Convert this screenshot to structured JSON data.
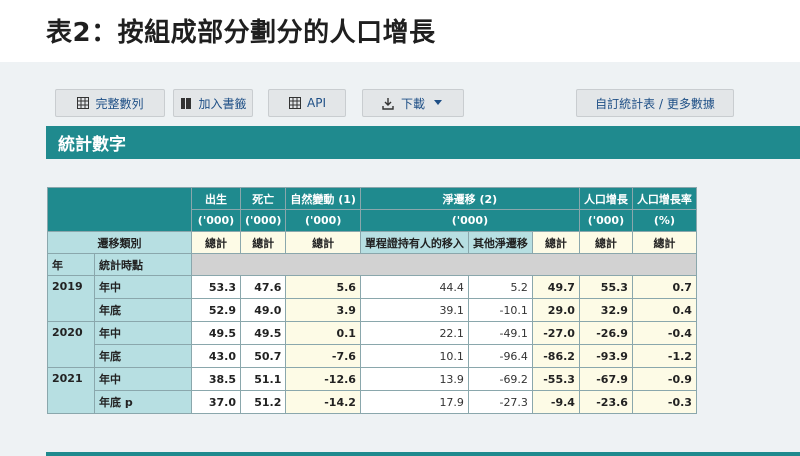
{
  "page": {
    "title": "表2：按組成部分劃分的人口增長"
  },
  "toolbar": {
    "full_series": "完整數列",
    "bookmark": "加入書籤",
    "api": "API",
    "download": "下載",
    "custom": "自訂統計表 / 更多數據"
  },
  "section": {
    "title": "統計數字"
  },
  "table": {
    "groups": {
      "births": "出生",
      "deaths": "死亡",
      "natural": "自然變動 (1)",
      "net_migration": "淨遷移 (2)",
      "growth": "人口增長",
      "growth_rate": "人口增長率"
    },
    "units": {
      "thousand": "('000)",
      "percent": "(%)"
    },
    "labels": {
      "migration_type": "遷移類別",
      "total": "總計",
      "one_way": "單程證持有人的移入",
      "other_net": "其他淨遷移",
      "year": "年",
      "ref_point": "統計時點"
    },
    "rows": [
      {
        "year": "2019",
        "point": "年中",
        "births": "53.3",
        "deaths": "47.6",
        "natural": "5.6",
        "one_way": "44.4",
        "other": "5.2",
        "net_total": "49.7",
        "growth": "55.3",
        "rate": "0.7"
      },
      {
        "year": "",
        "point": "年底",
        "births": "52.9",
        "deaths": "49.0",
        "natural": "3.9",
        "one_way": "39.1",
        "other": "-10.1",
        "net_total": "29.0",
        "growth": "32.9",
        "rate": "0.4"
      },
      {
        "year": "2020",
        "point": "年中",
        "births": "49.5",
        "deaths": "49.5",
        "natural": "0.1",
        "one_way": "22.1",
        "other": "-49.1",
        "net_total": "-27.0",
        "growth": "-26.9",
        "rate": "-0.4"
      },
      {
        "year": "",
        "point": "年底",
        "births": "43.0",
        "deaths": "50.7",
        "natural": "-7.6",
        "one_way": "10.1",
        "other": "-96.4",
        "net_total": "-86.2",
        "growth": "-93.9",
        "rate": "-1.2"
      },
      {
        "year": "2021",
        "point": "年中",
        "births": "38.5",
        "deaths": "51.1",
        "natural": "-12.6",
        "one_way": "13.9",
        "other": "-69.2",
        "net_total": "-55.3",
        "growth": "-67.9",
        "rate": "-0.9"
      },
      {
        "year": "",
        "point": "年底 p",
        "births": "37.0",
        "deaths": "51.2",
        "natural": "-14.2",
        "one_way": "17.9",
        "other": "-27.3",
        "net_total": "-9.4",
        "growth": "-23.6",
        "rate": "-0.3"
      }
    ]
  }
}
